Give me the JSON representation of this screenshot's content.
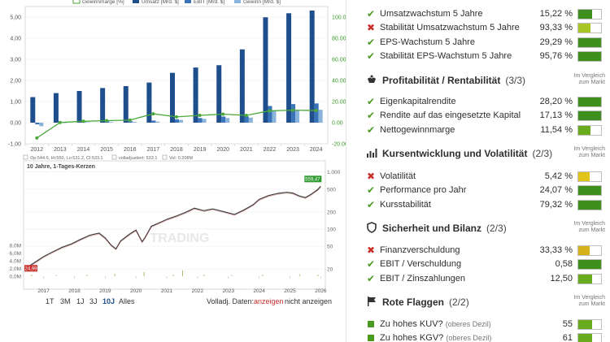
{
  "fin_chart": {
    "type": "bar",
    "legend": [
      "Gewinnmarge [%]",
      "Umsatz [Mrd. $]",
      "EBIT [Mrd. $]",
      "Gewinn [Mrd. $]"
    ],
    "categories": [
      "2012",
      "2013",
      "2014",
      "2015",
      "2016",
      "2017",
      "2018",
      "2019",
      "2020",
      "2021",
      "2022",
      "2023",
      "2024"
    ],
    "series": [
      {
        "name": "Umsatz [Mrd. $]",
        "values": [
          1.21,
          1.4,
          1.5,
          1.64,
          1.73,
          1.9,
          2.36,
          2.61,
          2.72,
          3.47,
          4.99,
          5.18,
          5.31
        ]
      },
      {
        "name": "EBIT [Mrd. $]",
        "values": [
          -0.08,
          0.02,
          0.03,
          0.07,
          0.07,
          0.1,
          0.16,
          0.22,
          0.29,
          0.3,
          0.79,
          0.88,
          0.91
        ]
      },
      {
        "name": "Gewinn [Mrd. $]",
        "values": [
          -0.17,
          0.0,
          0.02,
          0.03,
          0.04,
          0.05,
          0.13,
          0.18,
          0.22,
          0.24,
          0.56,
          0.61,
          0.61
        ]
      }
    ],
    "margin": {
      "name": "Gewinnmarge [%]",
      "values": [
        -14.5,
        0.2,
        1.3,
        1.9,
        2.4,
        8.4,
        5.5,
        6.9,
        8.1,
        6.9,
        11.2,
        11.8,
        11.5
      ]
    },
    "y_left_ticks": [
      "5,00",
      "4,00",
      "3,00",
      "2,00",
      "1,00",
      "0,00",
      "-1,00"
    ],
    "y_left_range": [
      -1,
      5.5
    ],
    "y_right_ticks": [
      "100.00",
      "80.00",
      "60.00",
      "40.00",
      "20.00",
      "0.00",
      "-20.00"
    ],
    "y_right_range": [
      -20,
      110
    ],
    "colors": {
      "umsatz": "#1f4e8c",
      "ebit": "#3a74b8",
      "gewinn": "#8ab4dc",
      "marge": "#4aa83a"
    }
  },
  "price_chart": {
    "type": "line",
    "title": "10 Jahre, 1-Tages-Kerzen",
    "info": [
      "Op:544.6, Hi:550, Lo:531.2, Cl:533.1",
      "volladjustiert: 533.1",
      "Vol: 0.208M"
    ],
    "last_price": "559,47",
    "low_label": "24,99",
    "years": [
      "2017",
      "2018",
      "2019",
      "2020",
      "2021",
      "2022",
      "2023",
      "2024",
      "2025",
      "2026"
    ],
    "price_ticks": [
      "1.000",
      "500",
      "200",
      "100",
      "50",
      "20"
    ],
    "volume_ticks": [
      "8,0M",
      "6,0M",
      "4,0M",
      "2,0M",
      "0,0M"
    ],
    "watermark": "TRADING",
    "points": [
      {
        "x": 2016.5,
        "y": 22
      },
      {
        "x": 2016.8,
        "y": 28
      },
      {
        "x": 2017.0,
        "y": 33
      },
      {
        "x": 2017.3,
        "y": 40
      },
      {
        "x": 2017.6,
        "y": 48
      },
      {
        "x": 2017.9,
        "y": 55
      },
      {
        "x": 2018.2,
        "y": 66
      },
      {
        "x": 2018.5,
        "y": 78
      },
      {
        "x": 2018.8,
        "y": 85
      },
      {
        "x": 2019.0,
        "y": 70
      },
      {
        "x": 2019.2,
        "y": 52
      },
      {
        "x": 2019.35,
        "y": 45
      },
      {
        "x": 2019.5,
        "y": 62
      },
      {
        "x": 2019.8,
        "y": 82
      },
      {
        "x": 2020.0,
        "y": 96
      },
      {
        "x": 2020.2,
        "y": 60
      },
      {
        "x": 2020.3,
        "y": 72
      },
      {
        "x": 2020.5,
        "y": 112
      },
      {
        "x": 2020.8,
        "y": 132
      },
      {
        "x": 2021.0,
        "y": 148
      },
      {
        "x": 2021.3,
        "y": 168
      },
      {
        "x": 2021.6,
        "y": 195
      },
      {
        "x": 2021.9,
        "y": 232
      },
      {
        "x": 2022.2,
        "y": 210
      },
      {
        "x": 2022.5,
        "y": 225
      },
      {
        "x": 2022.8,
        "y": 205
      },
      {
        "x": 2023.0,
        "y": 192
      },
      {
        "x": 2023.2,
        "y": 180
      },
      {
        "x": 2023.5,
        "y": 215
      },
      {
        "x": 2023.8,
        "y": 265
      },
      {
        "x": 2024.0,
        "y": 330
      },
      {
        "x": 2024.3,
        "y": 385
      },
      {
        "x": 2024.6,
        "y": 420
      },
      {
        "x": 2024.9,
        "y": 440
      },
      {
        "x": 2025.1,
        "y": 425
      },
      {
        "x": 2025.3,
        "y": 380
      },
      {
        "x": 2025.5,
        "y": 355
      },
      {
        "x": 2025.7,
        "y": 410
      },
      {
        "x": 2025.9,
        "y": 490
      },
      {
        "x": 2026.0,
        "y": 559.47
      }
    ],
    "volume": [
      {
        "x": 2016.6,
        "v": 0.4
      },
      {
        "x": 2017.4,
        "v": 0.3
      },
      {
        "x": 2018.4,
        "v": 0.35
      },
      {
        "x": 2019.3,
        "v": 0.6
      },
      {
        "x": 2020.25,
        "v": 1.1
      },
      {
        "x": 2021.2,
        "v": 0.35
      },
      {
        "x": 2021.5,
        "v": 1.5
      },
      {
        "x": 2022.2,
        "v": 0.4
      },
      {
        "x": 2023.1,
        "v": 0.3
      },
      {
        "x": 2024.1,
        "v": 0.35
      },
      {
        "x": 2025.3,
        "v": 0.5
      },
      {
        "x": 2025.9,
        "v": 0.4
      }
    ],
    "ranges": [
      "1T",
      "3M",
      "1J",
      "3J",
      "10J",
      "Alles"
    ],
    "active_range": "10J",
    "volladj_label": "Volladj. Daten:",
    "show_label": "anzeigen",
    "hide_label": "nicht anzeigen"
  },
  "sections": {
    "growth_rows": [
      {
        "ok": true,
        "label": "Umsatzwachstum 5 Jahre",
        "value": "15,22 %",
        "fill": 0.6,
        "color": "#3f8f1f"
      },
      {
        "ok": false,
        "label": "Stabilität Umsatzwachstum 5 Jahre",
        "value": "93,33 %",
        "fill": 0.55,
        "color": "#a9c724"
      },
      {
        "ok": true,
        "label": "EPS-Wachstum 5 Jahre",
        "value": "29,29 %",
        "fill": 1.0,
        "color": "#3f8f1f"
      },
      {
        "ok": true,
        "label": "Stabilität EPS-Wachstum 5 Jahre",
        "value": "95,76 %",
        "fill": 1.0,
        "color": "#3f8f1f"
      }
    ],
    "profit": {
      "title": "Profitabilität / Rentabilität",
      "count": "(3/3)",
      "compare": [
        "Im Vergleich",
        "zum Markt"
      ],
      "rows": [
        {
          "ok": true,
          "label": "Eigenkapitalrendite",
          "value": "28,20 %",
          "fill": 1.0,
          "color": "#3f8f1f"
        },
        {
          "ok": true,
          "label": "Rendite auf das eingesetzte Kapital",
          "value": "17,13 %",
          "fill": 1.0,
          "color": "#3f8f1f"
        },
        {
          "ok": true,
          "label": "Nettogewinnmarge",
          "value": "11,54 %",
          "fill": 0.55,
          "color": "#6aab1e"
        }
      ]
    },
    "price": {
      "title": "Kursentwicklung und Volatilität",
      "count": "(2/3)",
      "compare": [
        "Im Vergleich",
        "zum Markt"
      ],
      "rows": [
        {
          "ok": false,
          "label": "Volatilität",
          "value": "5,42 %",
          "fill": 0.5,
          "color": "#e0c419"
        },
        {
          "ok": true,
          "label": "Performance pro Jahr",
          "value": "24,07 %",
          "fill": 1.0,
          "color": "#3f8f1f"
        },
        {
          "ok": true,
          "label": "Kursstabilität",
          "value": "79,32 %",
          "fill": 1.0,
          "color": "#3f8f1f"
        }
      ]
    },
    "safety": {
      "title": "Sicherheit und Bilanz",
      "count": "(2/3)",
      "compare": [
        "Im Vergleich",
        "zum Markt"
      ],
      "rows": [
        {
          "ok": false,
          "label": "Finanzverschuldung",
          "value": "33,33 %",
          "fill": 0.5,
          "color": "#d6b21a"
        },
        {
          "ok": true,
          "label": "EBIT / Verschuldung",
          "value": "0,58",
          "fill": 1.0,
          "color": "#3f8f1f"
        },
        {
          "ok": true,
          "label": "EBIT / Zinszahlungen",
          "value": "12,50",
          "fill": 0.6,
          "color": "#6aab1e"
        }
      ]
    },
    "flags": {
      "title": "Rote Flaggen",
      "count": "(2/2)",
      "compare": [
        "Im Vergleich",
        "zum Markt"
      ],
      "rows": [
        {
          "label": "Zu hohes KUV?",
          "sub": "(oberes Dezil)",
          "value": "55",
          "fill": 0.6,
          "color": "#6aab1e"
        },
        {
          "label": "Zu hohes KGV?",
          "sub": "(oberes Dezil)",
          "value": "61",
          "fill": 0.6,
          "color": "#6aab1e"
        }
      ]
    }
  }
}
